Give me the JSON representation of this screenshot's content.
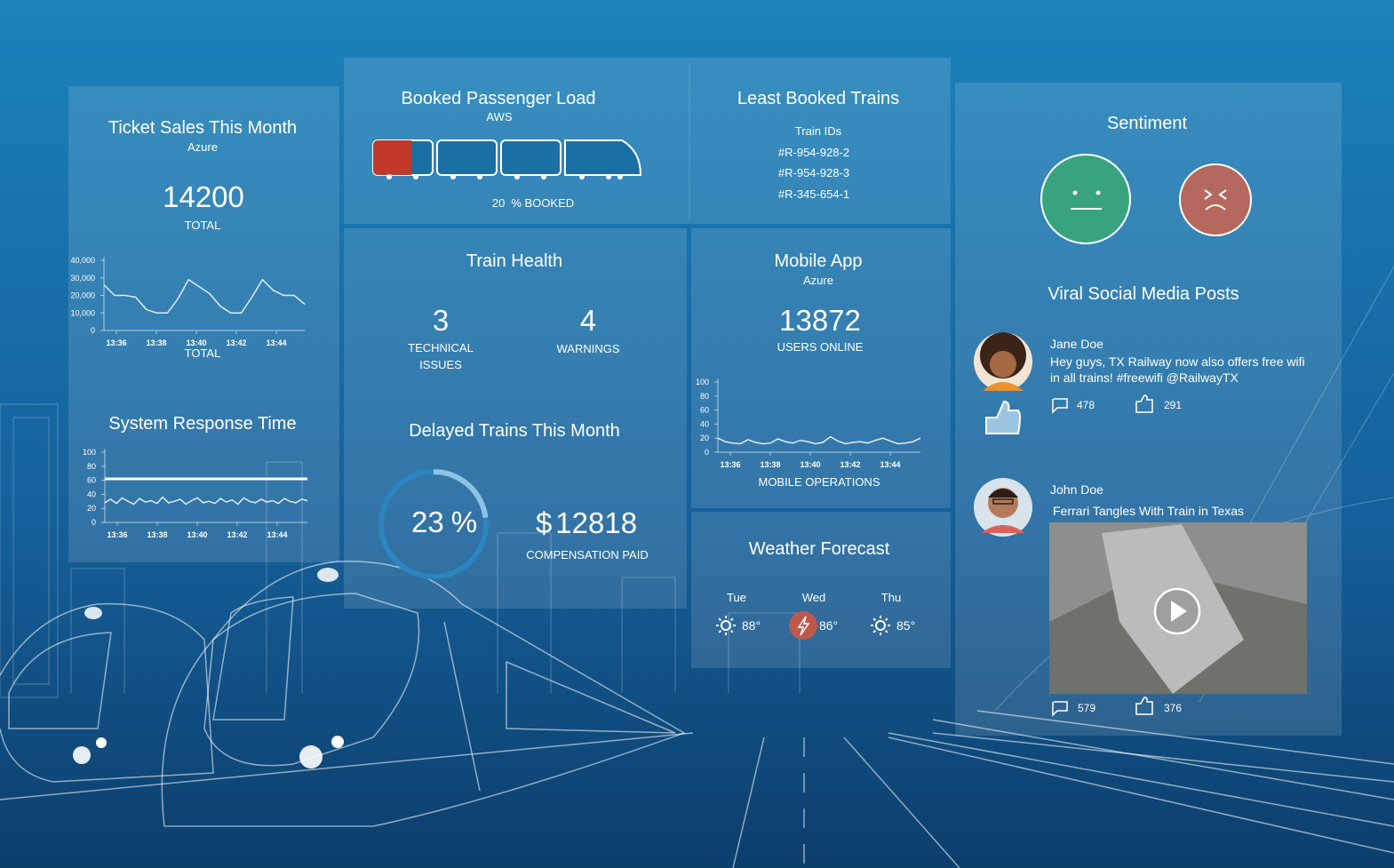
{
  "ticket_sales": {
    "title": "Ticket Sales This Month",
    "source": "Azure",
    "total": 14200,
    "total_label": "TOTAL",
    "chart": {
      "type": "line",
      "x_label": "TOTAL",
      "color": "#ffffff",
      "ylim": [
        0,
        40000
      ],
      "yticks": [
        0,
        {
          "value": 10000,
          "label": "10,000"
        },
        {
          "value": 20000,
          "label": "20,000"
        },
        {
          "value": 30000,
          "label": "30,000"
        },
        {
          "value": 40000,
          "label": "40,000"
        }
      ],
      "xticks": [
        "13:36",
        "13:38",
        "13:40",
        "13:42",
        "13:44"
      ],
      "values": [
        26000,
        20000,
        20000,
        19000,
        12000,
        10000,
        10000,
        18000,
        29000,
        25000,
        21000,
        14000,
        10000,
        10000,
        19000,
        29000,
        23000,
        20000,
        20000,
        15000
      ]
    }
  },
  "response_time": {
    "title": "System Response Time",
    "chart": {
      "type": "line",
      "color": "#ffffff",
      "ylim": [
        0,
        100
      ],
      "yticks": [
        0,
        20,
        40,
        60,
        80,
        100
      ],
      "threshold": 62,
      "xticks": [
        "13:36",
        "13:38",
        "13:40",
        "13:42",
        "13:44"
      ],
      "values": [
        28,
        33,
        27,
        35,
        30,
        26,
        34,
        29,
        31,
        27,
        36,
        28,
        30,
        33,
        26,
        31,
        35,
        28,
        30,
        27,
        34,
        29,
        32,
        26,
        35,
        30,
        28,
        33,
        29,
        31,
        27,
        34,
        30,
        28,
        33,
        31
      ]
    }
  },
  "passenger_load": {
    "title": "Booked Passenger Load",
    "source": "AWS",
    "percent": 20,
    "percent_label": "% BOOKED"
  },
  "least_booked": {
    "title": "Least Booked Trains",
    "subtitle": "Train IDs",
    "ids": [
      "#R-954-928-2",
      "#R-954-928-3",
      "#R-345-654-1"
    ]
  },
  "train_health": {
    "title": "Train Health",
    "items": [
      {
        "value": 3,
        "label_lines": [
          "TECHNICAL",
          "ISSUES"
        ]
      },
      {
        "value": 4,
        "label_lines": [
          "WARNINGS"
        ]
      }
    ]
  },
  "delayed": {
    "title": "Delayed Trains This Month",
    "percent": 23,
    "unit": "%",
    "currency": "$",
    "compensation": 12818,
    "compensation_label": "COMPENSATION PAID"
  },
  "mobile_app": {
    "title": "Mobile App",
    "source": "Azure",
    "users": 13872,
    "users_label": "USERS ONLINE",
    "chart": {
      "type": "line",
      "x_label": "MOBILE OPERATIONS",
      "color": "#ffffff",
      "ylim": [
        0,
        100
      ],
      "yticks": [
        0,
        20,
        40,
        60,
        80,
        100
      ],
      "xticks": [
        "13:36",
        "13:38",
        "13:40",
        "13:42",
        "13:44"
      ],
      "values": [
        20,
        15,
        13,
        12,
        18,
        14,
        12,
        13,
        19,
        15,
        13,
        17,
        15,
        12,
        14,
        22,
        16,
        12,
        14,
        15,
        13,
        17,
        20,
        16,
        12,
        13,
        15,
        20
      ]
    }
  },
  "weather": {
    "title": "Weather Forecast",
    "days": [
      {
        "day": "Tue",
        "temp": "88°",
        "icon": "sun"
      },
      {
        "day": "Wed",
        "temp": "86°",
        "icon": "storm"
      },
      {
        "day": "Thu",
        "temp": "85°",
        "icon": "sun"
      }
    ]
  },
  "sentiment": {
    "title": "Sentiment"
  },
  "viral": {
    "title": "Viral Social Media Posts",
    "posts": [
      {
        "name": "Jane Doe",
        "text_lines": [
          "Hey guys, TX Railway now also offers free wifi",
          "in all trains! #freewifi @RailwayTX"
        ],
        "comments": 478,
        "likes": 291
      },
      {
        "name": "John Doe",
        "text_lines": [
          "Ferrari Tangles With Train in Texas"
        ],
        "comments": 579,
        "likes": 376
      }
    ]
  }
}
